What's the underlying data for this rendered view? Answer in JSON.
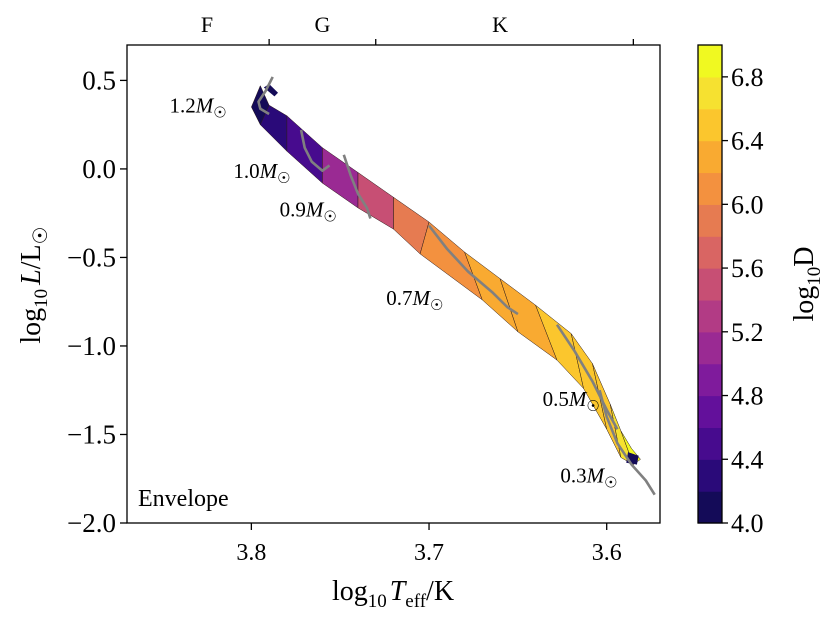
{
  "chart_data": {
    "type": "scatter",
    "title": "",
    "annotation_label": "Envelope",
    "x": {
      "label_base": "log",
      "label_sub": "10",
      "label_var": "T",
      "label_var_sub": "eff",
      "label_unit": "/K",
      "lim": [
        3.87,
        3.57
      ],
      "inverted": true,
      "ticks": [
        3.8,
        3.7,
        3.6
      ],
      "tick_labels": [
        "3.8",
        "3.7",
        "3.6"
      ]
    },
    "y": {
      "label_base": "log",
      "label_sub": "10",
      "label_var": "L",
      "label_unit": "/L",
      "label_sym": "☉",
      "lim": [
        -2.0,
        0.7
      ],
      "ticks": [
        0.5,
        0.0,
        -0.5,
        -1.0,
        -1.5,
        -2.0
      ],
      "tick_labels": [
        "0.5",
        "0.0",
        "−0.5",
        "−1.0",
        "−1.5",
        "−2.0"
      ]
    },
    "top_axis": {
      "ticks": [
        3.79,
        3.73,
        3.585
      ],
      "class_labels": [
        {
          "label": "F",
          "pos": 3.825
        },
        {
          "label": "G",
          "pos": 3.76
        },
        {
          "label": "K",
          "pos": 3.66
        }
      ]
    },
    "colorbar": {
      "label_base": "log",
      "label_sub": "10",
      "label_var": "D",
      "min": 4.0,
      "max": 7.0,
      "ticks": [
        4.0,
        4.4,
        4.8,
        5.2,
        5.6,
        6.0,
        6.4,
        6.8
      ],
      "tick_labels": [
        "4.0",
        "4.4",
        "4.8",
        "5.2",
        "5.6",
        "6.0",
        "6.4",
        "6.8"
      ],
      "colors": [
        "#140b58",
        "#2a0a79",
        "#470b8e",
        "#63109b",
        "#7f1b9c",
        "#9a2a93",
        "#b23b85",
        "#c74f74",
        "#d96563",
        "#e67b51",
        "#f3913f",
        "#f9aa31",
        "#fbc62d",
        "#f6e130",
        "#f0f921"
      ]
    },
    "mass_labels": [
      {
        "mass": "1.2",
        "logT": 3.83,
        "logL": 0.32
      },
      {
        "mass": "1.0",
        "logT": 3.794,
        "logL": -0.05
      },
      {
        "mass": "0.9",
        "logT": 3.768,
        "logL": -0.27
      },
      {
        "mass": "0.7",
        "logT": 3.708,
        "logL": -0.77
      },
      {
        "mass": "0.5",
        "logT": 3.62,
        "logL": -1.34
      },
      {
        "mass": "0.3",
        "logT": 3.61,
        "logL": -1.77
      }
    ],
    "mass_unit": "M",
    "mass_sym": "☉",
    "band": {
      "upper": [
        [
          3.795,
          0.47
        ],
        [
          3.79,
          0.36
        ],
        [
          3.78,
          0.3
        ],
        [
          3.76,
          0.12
        ],
        [
          3.74,
          -0.02
        ],
        [
          3.72,
          -0.16
        ],
        [
          3.7,
          -0.3
        ],
        [
          3.68,
          -0.47
        ],
        [
          3.66,
          -0.62
        ],
        [
          3.64,
          -0.77
        ],
        [
          3.62,
          -0.93
        ],
        [
          3.608,
          -1.1
        ],
        [
          3.598,
          -1.33
        ],
        [
          3.592,
          -1.48
        ],
        [
          3.586,
          -1.58
        ]
      ],
      "lower": [
        [
          3.581,
          -1.64
        ],
        [
          3.585,
          -1.67
        ],
        [
          3.592,
          -1.63
        ],
        [
          3.6,
          -1.47
        ],
        [
          3.613,
          -1.24
        ],
        [
          3.628,
          -1.08
        ],
        [
          3.65,
          -0.92
        ],
        [
          3.67,
          -0.74
        ],
        [
          3.69,
          -0.58
        ],
        [
          3.705,
          -0.48
        ],
        [
          3.72,
          -0.34
        ],
        [
          3.74,
          -0.22
        ],
        [
          3.76,
          -0.08
        ],
        [
          3.78,
          0.1
        ],
        [
          3.795,
          0.25
        ],
        [
          3.8,
          0.35
        ]
      ],
      "logD_at_upper": [
        4.1,
        4.2,
        4.5,
        5.1,
        5.5,
        5.8,
        6.0,
        6.2,
        6.3,
        6.4,
        6.5,
        6.6,
        6.7,
        6.85,
        6.9
      ]
    },
    "tracks": [
      {
        "mass": "1.2",
        "points": [
          [
            3.788,
            0.52
          ],
          [
            3.792,
            0.44
          ],
          [
            3.796,
            0.38
          ],
          [
            3.795,
            0.34
          ],
          [
            3.79,
            0.31
          ]
        ]
      },
      {
        "mass": "1.0",
        "points": [
          [
            3.772,
            0.22
          ],
          [
            3.77,
            0.12
          ],
          [
            3.766,
            0.04
          ],
          [
            3.76,
            -0.01
          ],
          [
            3.756,
            0.02
          ]
        ]
      },
      {
        "mass": "0.9",
        "points": [
          [
            3.748,
            0.08
          ],
          [
            3.744,
            -0.04
          ],
          [
            3.74,
            -0.14
          ],
          [
            3.735,
            -0.22
          ],
          [
            3.733,
            -0.28
          ]
        ]
      },
      {
        "mass": "0.7",
        "points": [
          [
            3.7,
            -0.32
          ],
          [
            3.69,
            -0.45
          ],
          [
            3.678,
            -0.58
          ],
          [
            3.664,
            -0.7
          ],
          [
            3.656,
            -0.78
          ],
          [
            3.65,
            -0.82
          ]
        ]
      },
      {
        "mass": "0.5",
        "points": [
          [
            3.628,
            -0.88
          ],
          [
            3.618,
            -1.03
          ],
          [
            3.608,
            -1.2
          ],
          [
            3.6,
            -1.36
          ],
          [
            3.594,
            -1.47
          ]
        ]
      },
      {
        "mass": "0.3",
        "points": [
          [
            3.604,
            -1.25
          ],
          [
            3.6,
            -1.4
          ],
          [
            3.594,
            -1.55
          ],
          [
            3.586,
            -1.67
          ],
          [
            3.578,
            -1.76
          ],
          [
            3.573,
            -1.84
          ]
        ]
      }
    ]
  }
}
